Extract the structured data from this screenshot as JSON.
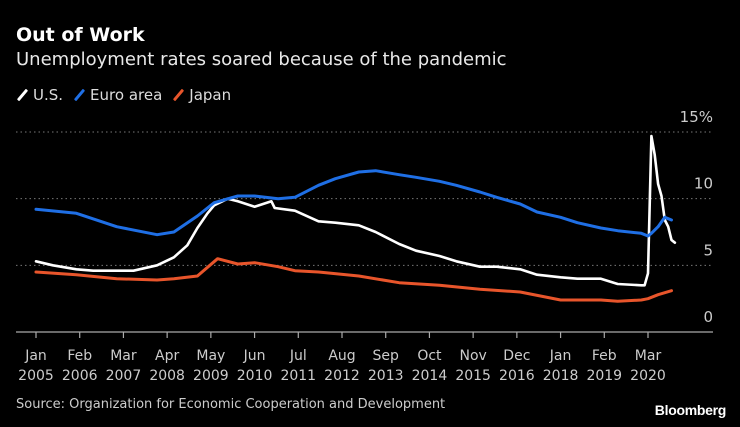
{
  "title": "Out of Work",
  "subtitle": "Unemployment rates soared because of the pandemic",
  "source": "Source: Organization for Economic Cooperation and Development",
  "logo": "Bloomberg",
  "chart_data": {
    "type": "line",
    "title": "Out of Work",
    "subtitle": "Unemployment rates soared because of the pandemic",
    "ylabel": "",
    "xlabel": "",
    "y_unit": "%",
    "ylim": [
      0,
      15
    ],
    "yticks": [
      {
        "v": 0,
        "label": "0"
      },
      {
        "v": 5,
        "label": "5"
      },
      {
        "v": 10,
        "label": "10"
      },
      {
        "v": 15,
        "label": "15%"
      }
    ],
    "y_axis_position": "right",
    "grid": "horizontal dotted",
    "legend_position": "top-left",
    "xticks": [
      {
        "date": "2005-01",
        "month": "Jan",
        "year": "2005"
      },
      {
        "date": "2006-02",
        "month": "Feb",
        "year": "2006"
      },
      {
        "date": "2007-03",
        "month": "Mar",
        "year": "2007"
      },
      {
        "date": "2008-04",
        "month": "Apr",
        "year": "2008"
      },
      {
        "date": "2009-05",
        "month": "May",
        "year": "2009"
      },
      {
        "date": "2010-06",
        "month": "Jun",
        "year": "2010"
      },
      {
        "date": "2011-07",
        "month": "Jul",
        "year": "2011"
      },
      {
        "date": "2012-08",
        "month": "Aug",
        "year": "2012"
      },
      {
        "date": "2013-09",
        "month": "Sep",
        "year": "2013"
      },
      {
        "date": "2014-10",
        "month": "Oct",
        "year": "2014"
      },
      {
        "date": "2015-11",
        "month": "Nov",
        "year": "2015"
      },
      {
        "date": "2016-12",
        "month": "Dec",
        "year": "2016"
      },
      {
        "date": "2018-01",
        "month": "Jan",
        "year": "2018"
      },
      {
        "date": "2019-02",
        "month": "Feb",
        "year": "2019"
      },
      {
        "date": "2020-03",
        "month": "Mar",
        "year": "2020"
      }
    ],
    "series": [
      {
        "name": "U.S.",
        "color": "#ffffff",
        "points": [
          [
            "2005-01",
            5.3
          ],
          [
            "2005-06",
            5.0
          ],
          [
            "2006-01",
            4.7
          ],
          [
            "2006-06",
            4.6
          ],
          [
            "2007-01",
            4.6
          ],
          [
            "2007-06",
            4.6
          ],
          [
            "2008-01",
            5.0
          ],
          [
            "2008-06",
            5.6
          ],
          [
            "2008-10",
            6.5
          ],
          [
            "2009-01",
            7.8
          ],
          [
            "2009-04",
            8.9
          ],
          [
            "2009-06",
            9.5
          ],
          [
            "2009-10",
            10.0
          ],
          [
            "2010-01",
            9.8
          ],
          [
            "2010-06",
            9.4
          ],
          [
            "2010-11",
            9.8
          ],
          [
            "2010-12",
            9.3
          ],
          [
            "2011-06",
            9.1
          ],
          [
            "2012-01",
            8.3
          ],
          [
            "2012-06",
            8.2
          ],
          [
            "2013-01",
            8.0
          ],
          [
            "2013-06",
            7.5
          ],
          [
            "2014-01",
            6.6
          ],
          [
            "2014-06",
            6.1
          ],
          [
            "2015-01",
            5.7
          ],
          [
            "2015-06",
            5.3
          ],
          [
            "2016-01",
            4.9
          ],
          [
            "2016-06",
            4.9
          ],
          [
            "2017-01",
            4.7
          ],
          [
            "2017-06",
            4.3
          ],
          [
            "2018-01",
            4.1
          ],
          [
            "2018-06",
            4.0
          ],
          [
            "2019-01",
            4.0
          ],
          [
            "2019-06",
            3.6
          ],
          [
            "2020-01",
            3.5
          ],
          [
            "2020-02",
            3.5
          ],
          [
            "2020-03",
            4.4
          ],
          [
            "2020-04",
            14.7
          ],
          [
            "2020-05",
            13.3
          ],
          [
            "2020-06",
            11.1
          ],
          [
            "2020-07",
            10.2
          ],
          [
            "2020-08",
            8.4
          ],
          [
            "2020-09",
            7.9
          ],
          [
            "2020-10",
            6.9
          ],
          [
            "2020-11",
            6.7
          ]
        ]
      },
      {
        "name": "Euro area",
        "color": "#1f6fe5",
        "points": [
          [
            "2005-01",
            9.2
          ],
          [
            "2006-01",
            8.9
          ],
          [
            "2007-01",
            7.9
          ],
          [
            "2008-01",
            7.3
          ],
          [
            "2008-06",
            7.5
          ],
          [
            "2009-01",
            8.7
          ],
          [
            "2009-06",
            9.7
          ],
          [
            "2010-01",
            10.2
          ],
          [
            "2010-06",
            10.2
          ],
          [
            "2011-01",
            10.0
          ],
          [
            "2011-06",
            10.1
          ],
          [
            "2012-01",
            11.0
          ],
          [
            "2012-06",
            11.5
          ],
          [
            "2013-01",
            12.0
          ],
          [
            "2013-06",
            12.1
          ],
          [
            "2014-01",
            11.8
          ],
          [
            "2014-06",
            11.6
          ],
          [
            "2015-01",
            11.3
          ],
          [
            "2015-06",
            11.0
          ],
          [
            "2016-01",
            10.5
          ],
          [
            "2016-06",
            10.1
          ],
          [
            "2017-01",
            9.6
          ],
          [
            "2017-06",
            9.0
          ],
          [
            "2018-01",
            8.6
          ],
          [
            "2018-06",
            8.2
          ],
          [
            "2019-01",
            7.8
          ],
          [
            "2019-06",
            7.6
          ],
          [
            "2020-01",
            7.4
          ],
          [
            "2020-03",
            7.2
          ],
          [
            "2020-04",
            7.4
          ],
          [
            "2020-06",
            7.9
          ],
          [
            "2020-08",
            8.6
          ],
          [
            "2020-10",
            8.4
          ]
        ]
      },
      {
        "name": "Japan",
        "color": "#e8552b",
        "points": [
          [
            "2005-01",
            4.5
          ],
          [
            "2006-01",
            4.3
          ],
          [
            "2007-01",
            4.0
          ],
          [
            "2008-01",
            3.9
          ],
          [
            "2008-06",
            4.0
          ],
          [
            "2009-01",
            4.2
          ],
          [
            "2009-07",
            5.5
          ],
          [
            "2010-01",
            5.1
          ],
          [
            "2010-06",
            5.2
          ],
          [
            "2011-01",
            4.9
          ],
          [
            "2011-06",
            4.6
          ],
          [
            "2012-01",
            4.5
          ],
          [
            "2013-01",
            4.2
          ],
          [
            "2014-01",
            3.7
          ],
          [
            "2015-01",
            3.5
          ],
          [
            "2016-01",
            3.2
          ],
          [
            "2017-01",
            3.0
          ],
          [
            "2018-01",
            2.4
          ],
          [
            "2018-06",
            2.4
          ],
          [
            "2019-01",
            2.4
          ],
          [
            "2019-06",
            2.3
          ],
          [
            "2020-01",
            2.4
          ],
          [
            "2020-03",
            2.5
          ],
          [
            "2020-06",
            2.8
          ],
          [
            "2020-10",
            3.1
          ]
        ]
      }
    ]
  }
}
